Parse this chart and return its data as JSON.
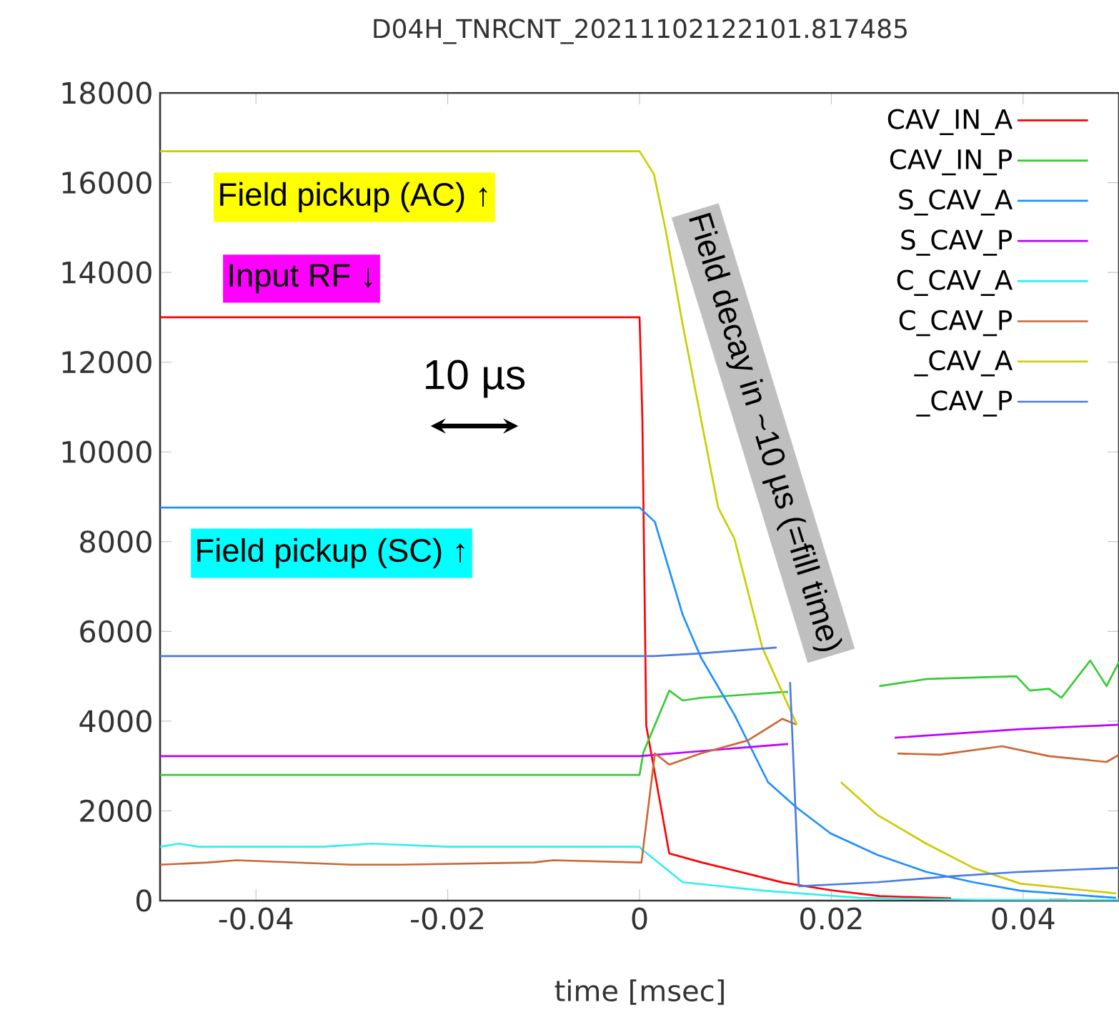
{
  "chart_data": {
    "type": "line",
    "title": "D04H_TNRCNT_20211102122101.817485",
    "xlabel": "time [msec]",
    "xlim": [
      -0.05,
      0.05
    ],
    "xticks": [
      -0.04,
      -0.02,
      0,
      0.02,
      0.04
    ],
    "ylim": [
      0,
      18000
    ],
    "yticks": [
      0,
      2000,
      4000,
      6000,
      8000,
      10000,
      12000,
      14000,
      16000,
      18000
    ],
    "grid": false,
    "legend": "top right",
    "marker": "none",
    "line_style": "solid",
    "series": [
      {
        "name": "CAV_IN_A",
        "color": "#ff0000",
        "x": [
          -0.05,
          0,
          0.0001,
          0.0003,
          0.0007,
          0.0031,
          0.0065,
          0.015,
          0.02,
          0.025,
          0.0325,
          0.037,
          0.0427,
          0.0446
        ],
        "values": [
          13000,
          13000,
          12300,
          10700,
          3900,
          1050,
          850,
          400,
          230,
          100,
          50,
          null,
          20,
          20
        ]
      },
      {
        "name": "CAV_IN_P",
        "color": "#33cc33",
        "x": [
          -0.05,
          0,
          0.0004,
          0.0031,
          0.0045,
          0.0064,
          0.015,
          0.0155,
          0.02,
          0.025,
          0.03,
          0.0393,
          0.0407,
          0.0427,
          0.044,
          0.047,
          0.0487,
          0.05
        ],
        "values": [
          2800,
          2800,
          3300,
          4680,
          4460,
          4520,
          4650,
          4650,
          null,
          4780,
          4940,
          5000,
          4680,
          4720,
          4520,
          5350,
          4780,
          5320
        ]
      },
      {
        "name": "S_CAV_A",
        "color": "#1e8fff",
        "x": [
          -0.05,
          0,
          0.0016,
          0.0045,
          0.0064,
          0.0099,
          0.0134,
          0.0164,
          0.0199,
          0.0248,
          0.0299,
          0.0348,
          0.0397,
          0.0497
        ],
        "values": [
          8760,
          8760,
          8440,
          6370,
          5420,
          4140,
          2640,
          2070,
          1500,
          1020,
          640,
          410,
          220,
          60
        ]
      },
      {
        "name": "S_CAV_P",
        "color": "#bf00ff",
        "x": [
          -0.05,
          0,
          0.0143,
          0.0155,
          0.02,
          0.0266,
          0.0397,
          0.05
        ],
        "values": [
          3220,
          3220,
          3470,
          3490,
          null,
          3630,
          3820,
          3920
        ]
      },
      {
        "name": "C_CAV_A",
        "color": "#33eeee",
        "x": [
          -0.05,
          -0.048,
          -0.046,
          -0.033,
          -0.028,
          -0.02,
          -0.013,
          0,
          0.0002,
          0.0045,
          0.013,
          0.023,
          0.035,
          0.05
        ],
        "values": [
          1200,
          1270,
          1200,
          1200,
          1270,
          1200,
          1200,
          1200,
          1150,
          410,
          220,
          60,
          20,
          10
        ]
      },
      {
        "name": "C_CAV_P",
        "color": "#cc6633",
        "x": [
          -0.05,
          -0.045,
          -0.042,
          -0.03,
          -0.025,
          -0.011,
          -0.009,
          0,
          0.0002,
          0.0016,
          0.0031,
          0.0064,
          0.0113,
          0.0149,
          0.0164,
          0.02,
          0.0269,
          0.0313,
          0.0378,
          0.0427,
          0.0487,
          0.05
        ],
        "values": [
          800,
          850,
          900,
          800,
          800,
          850,
          900,
          850,
          850,
          3280,
          3030,
          3280,
          3570,
          4050,
          3920,
          null,
          3280,
          3250,
          3440,
          3220,
          3090,
          3250
        ]
      },
      {
        "name": "_CAV_A",
        "color": "#cccc00",
        "x": [
          -0.05,
          0,
          0.0015,
          0.0027,
          0.0045,
          0.0064,
          0.0082,
          0.0099,
          0.0128,
          0.0164,
          0.019,
          0.021,
          0.0248,
          0.0299,
          0.0348,
          0.0397,
          0.0497
        ],
        "values": [
          16700,
          16700,
          16190,
          14970,
          12840,
          10740,
          8760,
          8060,
          5640,
          3920,
          null,
          2640,
          1910,
          1270,
          730,
          380,
          160
        ]
      },
      {
        "name": "_CAV_P",
        "color": "#4a7be8",
        "x": [
          -0.05,
          0,
          0.0015,
          0.0064,
          0.0143,
          0.015,
          0.0157,
          0.0166,
          0.0248,
          0.0323,
          0.0397,
          0.05
        ],
        "values": [
          5450,
          5450,
          5450,
          5510,
          5640,
          null,
          4870,
          320,
          410,
          540,
          640,
          730
        ]
      }
    ],
    "annotations": [
      "Field pickup (AC) ↑",
      "Input RF ↓",
      "10 µs",
      "Field pickup (SC) ↑",
      "Field decay in ~10 µs (=fill time)"
    ]
  }
}
